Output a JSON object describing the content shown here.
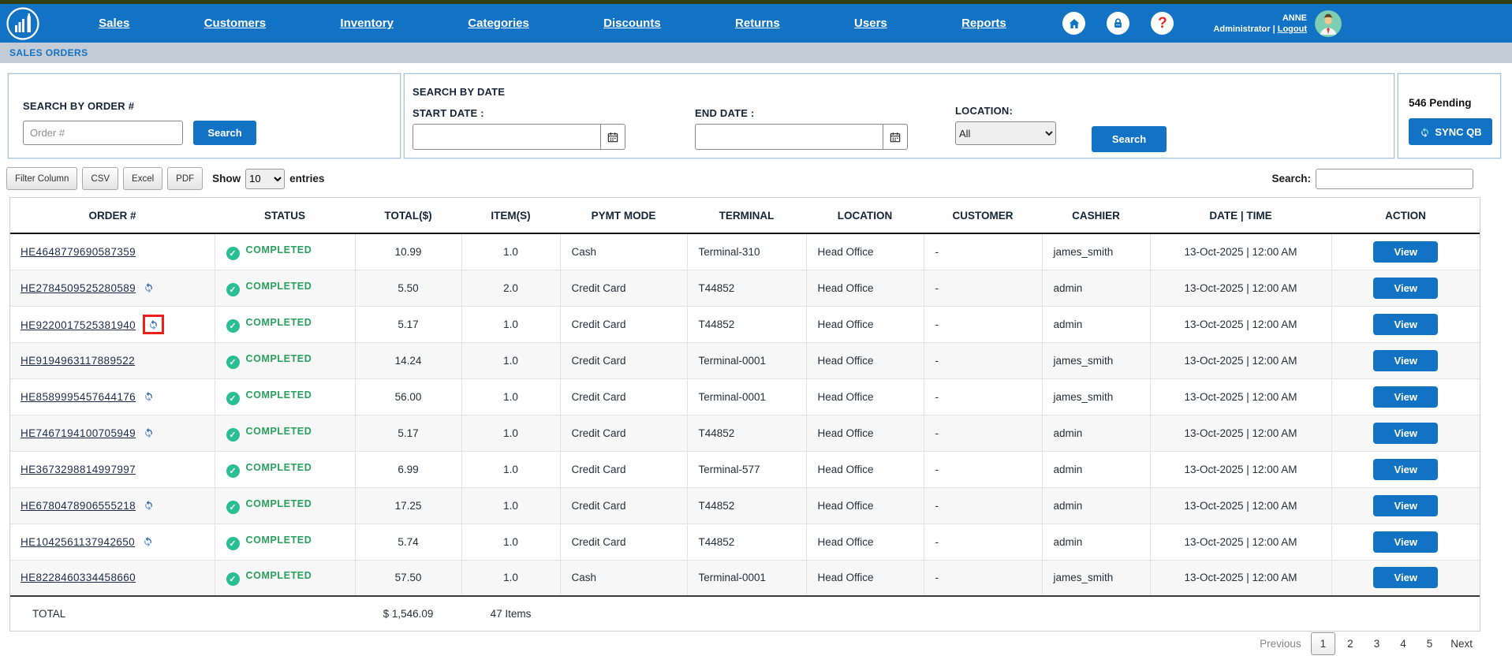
{
  "nav": {
    "items": [
      "Sales",
      "Customers",
      "Inventory",
      "Categories",
      "Discounts",
      "Returns",
      "Users",
      "Reports"
    ],
    "user_name": "ANNE",
    "user_role": "Administrator",
    "logout_label": "Logout"
  },
  "breadcrumb": "SALES ORDERS",
  "search_order_panel": {
    "label": "SEARCH BY ORDER #",
    "placeholder": "Order #",
    "search_button": "Search"
  },
  "search_date_panel": {
    "label": "SEARCH BY DATE",
    "start_date_label": "START DATE :",
    "end_date_label": "END DATE :",
    "location_label": "LOCATION:",
    "location_value": "All",
    "search_button": "Search"
  },
  "sync_panel": {
    "pending_count": "546 Pending",
    "sync_button": "SYNC QB"
  },
  "toolbar": {
    "filter_column": "Filter Column",
    "csv": "CSV",
    "excel": "Excel",
    "pdf": "PDF",
    "show_label": "Show",
    "page_size": "10",
    "entries_label": "entries",
    "search_label": "Search:"
  },
  "table": {
    "headers": [
      "ORDER #",
      "STATUS",
      "TOTAL($)",
      "ITEM(S)",
      "PYMT MODE",
      "TERMINAL",
      "LOCATION",
      "CUSTOMER",
      "CASHIER",
      "DATE | TIME",
      "ACTION"
    ],
    "rows": [
      {
        "order": "HE4648779690587359",
        "sync": false,
        "sync_highlighted": false,
        "status": "COMPLETED",
        "total": "10.99",
        "items": "1.0",
        "pymt_mode": "Cash",
        "terminal": "Terminal-310",
        "location": "Head Office",
        "customer": "-",
        "cashier": "james_smith",
        "datetime": "13-Oct-2025 | 12:00 AM",
        "action": "View"
      },
      {
        "order": "HE2784509525280589",
        "sync": true,
        "sync_highlighted": false,
        "status": "COMPLETED",
        "total": "5.50",
        "items": "2.0",
        "pymt_mode": "Credit Card",
        "terminal": "T44852",
        "location": "Head Office",
        "customer": "-",
        "cashier": "admin",
        "datetime": "13-Oct-2025 | 12:00 AM",
        "action": "View"
      },
      {
        "order": "HE9220017525381940",
        "sync": true,
        "sync_highlighted": true,
        "status": "COMPLETED",
        "total": "5.17",
        "items": "1.0",
        "pymt_mode": "Credit Card",
        "terminal": "T44852",
        "location": "Head Office",
        "customer": "-",
        "cashier": "admin",
        "datetime": "13-Oct-2025 | 12:00 AM",
        "action": "View"
      },
      {
        "order": "HE9194963117889522",
        "sync": false,
        "sync_highlighted": false,
        "status": "COMPLETED",
        "total": "14.24",
        "items": "1.0",
        "pymt_mode": "Credit Card",
        "terminal": "Terminal-0001",
        "location": "Head Office",
        "customer": "-",
        "cashier": "james_smith",
        "datetime": "13-Oct-2025 | 12:00 AM",
        "action": "View"
      },
      {
        "order": "HE8589995457644176",
        "sync": true,
        "sync_highlighted": false,
        "status": "COMPLETED",
        "total": "56.00",
        "items": "1.0",
        "pymt_mode": "Credit Card",
        "terminal": "Terminal-0001",
        "location": "Head Office",
        "customer": "-",
        "cashier": "james_smith",
        "datetime": "13-Oct-2025 | 12:00 AM",
        "action": "View"
      },
      {
        "order": "HE7467194100705949",
        "sync": true,
        "sync_highlighted": false,
        "status": "COMPLETED",
        "total": "5.17",
        "items": "1.0",
        "pymt_mode": "Credit Card",
        "terminal": "T44852",
        "location": "Head Office",
        "customer": "-",
        "cashier": "admin",
        "datetime": "13-Oct-2025 | 12:00 AM",
        "action": "View"
      },
      {
        "order": "HE3673298814997997",
        "sync": false,
        "sync_highlighted": false,
        "status": "COMPLETED",
        "total": "6.99",
        "items": "1.0",
        "pymt_mode": "Credit Card",
        "terminal": "Terminal-577",
        "location": "Head Office",
        "customer": "-",
        "cashier": "admin",
        "datetime": "13-Oct-2025 | 12:00 AM",
        "action": "View"
      },
      {
        "order": "HE6780478906555218",
        "sync": true,
        "sync_highlighted": false,
        "status": "COMPLETED",
        "total": "17.25",
        "items": "1.0",
        "pymt_mode": "Credit Card",
        "terminal": "T44852",
        "location": "Head Office",
        "customer": "-",
        "cashier": "admin",
        "datetime": "13-Oct-2025 | 12:00 AM",
        "action": "View"
      },
      {
        "order": "HE1042561137942650",
        "sync": true,
        "sync_highlighted": false,
        "status": "COMPLETED",
        "total": "5.74",
        "items": "1.0",
        "pymt_mode": "Credit Card",
        "terminal": "T44852",
        "location": "Head Office",
        "customer": "-",
        "cashier": "admin",
        "datetime": "13-Oct-2025 | 12:00 AM",
        "action": "View"
      },
      {
        "order": "HE8228460334458660",
        "sync": false,
        "sync_highlighted": false,
        "status": "COMPLETED",
        "total": "57.50",
        "items": "1.0",
        "pymt_mode": "Cash",
        "terminal": "Terminal-0001",
        "location": "Head Office",
        "customer": "-",
        "cashier": "james_smith",
        "datetime": "13-Oct-2025 | 12:00 AM",
        "action": "View"
      }
    ],
    "footer": {
      "label": "TOTAL",
      "total_value": "$ 1,546.09",
      "items_value": "47 Items"
    }
  },
  "pagination": {
    "previous": "Previous",
    "pages": [
      "1",
      "2",
      "3",
      "4",
      "5"
    ],
    "active_page": "1",
    "next": "Next"
  },
  "colors": {
    "nav_blue": "#1273c4",
    "completed_green": "#27a05c",
    "alert_red": "#e8251f",
    "breadcrumb_bg": "#c3ccd6"
  }
}
